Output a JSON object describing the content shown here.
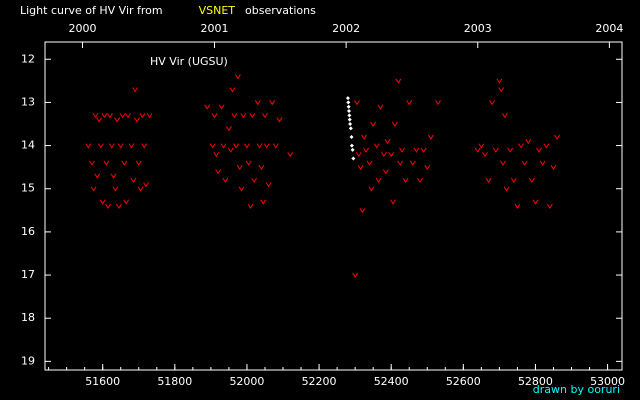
{
  "chart_data": {
    "type": "scatter",
    "title_parts": [
      {
        "text": "Light curve of HV Vir from",
        "color": "#ffffff"
      },
      {
        "text": "VSNET",
        "color": "#ffff00"
      },
      {
        "text": "observations",
        "color": "#ffffff"
      }
    ],
    "annotation": "HV Vir (UGSU)",
    "credit": "drawn by ooruri",
    "credit_color": "#00ffff",
    "xlim": [
      51440,
      53040
    ],
    "xticks": [
      51600,
      51800,
      52000,
      52200,
      52400,
      52600,
      52800,
      53000
    ],
    "x2ticks": [
      {
        "value": 51544,
        "label": "2000"
      },
      {
        "value": 51910,
        "label": "2001"
      },
      {
        "value": 52275,
        "label": "2002"
      },
      {
        "value": 52640,
        "label": "2003"
      },
      {
        "value": 53005,
        "label": "2004"
      }
    ],
    "ylim": [
      11.6,
      19.2
    ],
    "y_inverted": true,
    "yticks": [
      12,
      13,
      14,
      15,
      16,
      17,
      18,
      19
    ],
    "series": [
      {
        "color": "#ff0000",
        "marker": "v",
        "x": [
          51560,
          51570,
          51575,
          51580,
          51585,
          51590,
          51595,
          51600,
          51605,
          51610,
          51615,
          51620,
          51625,
          51630,
          51635,
          51640,
          51645,
          51650,
          51655,
          51660,
          51665,
          51670,
          51680,
          51685,
          51690,
          51695,
          51700,
          51705,
          51710,
          51715,
          51720,
          51730,
          51890,
          51905,
          51910,
          51915,
          51920,
          51930,
          51935,
          51940,
          51950,
          51955,
          51960,
          51965,
          51970,
          51975,
          51980,
          51985,
          51990,
          52000,
          52005,
          52010,
          52015,
          52020,
          52030,
          52035,
          52040,
          52045,
          52050,
          52055,
          52060,
          52070,
          52080,
          52090,
          52120,
          52300,
          52305,
          52310,
          52315,
          52320,
          52325,
          52330,
          52340,
          52345,
          52350,
          52360,
          52365,
          52370,
          52380,
          52385,
          52390,
          52400,
          52405,
          52410,
          52420,
          52425,
          52430,
          52440,
          52450,
          52460,
          52470,
          52480,
          52490,
          52500,
          52510,
          52530,
          52640,
          52650,
          52660,
          52670,
          52680,
          52690,
          52700,
          52705,
          52710,
          52715,
          52720,
          52730,
          52740,
          52750,
          52760,
          52770,
          52780,
          52790,
          52800,
          52810,
          52820,
          52830,
          52840,
          52850,
          52860
        ],
        "values": [
          14.0,
          14.4,
          15.0,
          13.3,
          14.7,
          13.4,
          14.0,
          15.3,
          13.3,
          14.4,
          15.4,
          13.3,
          14.0,
          14.7,
          15.0,
          13.4,
          15.4,
          14.0,
          13.3,
          14.4,
          15.3,
          13.3,
          14.0,
          14.8,
          12.7,
          13.4,
          14.4,
          15.0,
          13.3,
          14.0,
          14.9,
          13.3,
          13.1,
          14.0,
          13.3,
          14.2,
          14.6,
          13.1,
          14.0,
          14.8,
          13.6,
          14.1,
          12.7,
          13.3,
          14.0,
          12.4,
          14.5,
          15.0,
          13.3,
          14.0,
          14.4,
          15.4,
          13.3,
          14.8,
          13.0,
          14.0,
          14.5,
          15.3,
          13.3,
          14.0,
          14.9,
          13.0,
          14.0,
          13.4,
          14.2,
          17.0,
          13.0,
          14.2,
          14.5,
          15.5,
          13.8,
          14.1,
          14.4,
          15.0,
          13.5,
          14.0,
          14.8,
          13.1,
          14.2,
          14.6,
          13.9,
          14.2,
          15.3,
          13.5,
          12.5,
          14.4,
          14.1,
          14.8,
          13.0,
          14.4,
          14.1,
          14.8,
          14.1,
          14.5,
          13.8,
          13.0,
          14.1,
          14.0,
          14.2,
          14.8,
          13.0,
          14.1,
          12.5,
          12.7,
          14.4,
          13.3,
          15.0,
          14.1,
          14.8,
          15.4,
          14.0,
          14.4,
          13.9,
          14.8,
          15.3,
          14.1,
          14.4,
          14.0,
          15.4,
          14.5,
          13.8
        ]
      },
      {
        "color": "#ffffff",
        "marker": "diamond",
        "x": [
          52280,
          52281,
          52282,
          52283,
          52284,
          52285,
          52286,
          52288,
          52290,
          52291,
          52293,
          52295
        ],
        "values": [
          12.9,
          13.0,
          13.1,
          13.2,
          13.3,
          13.4,
          13.5,
          13.6,
          13.8,
          14.0,
          14.1,
          14.3
        ]
      }
    ]
  }
}
